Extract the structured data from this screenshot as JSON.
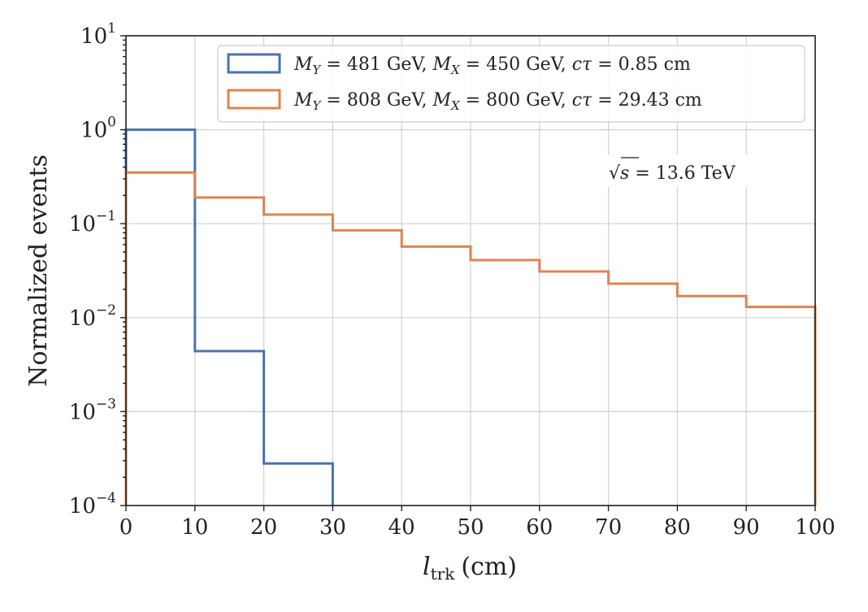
{
  "chart_data": {
    "type": "line",
    "drawstyle": "steps",
    "xlabel": "l_trk (cm)",
    "xlabel_main": "l",
    "xlabel_sub": "trk",
    "xlabel_unit": "(cm)",
    "ylabel": "Normalized events",
    "xlim": [
      0,
      100
    ],
    "ylim": [
      0.0001,
      10
    ],
    "yscale": "log",
    "grid": true,
    "legend_position": "top-right",
    "x_ticks": [
      0,
      10,
      20,
      30,
      40,
      50,
      60,
      70,
      80,
      90,
      100
    ],
    "x_tick_labels": [
      "0",
      "10",
      "20",
      "30",
      "40",
      "50",
      "60",
      "70",
      "80",
      "90",
      "100"
    ],
    "y_ticks": [
      {
        "value": 10,
        "base": "10",
        "exp": "1"
      },
      {
        "value": 1,
        "base": "10",
        "exp": "0"
      },
      {
        "value": 0.1,
        "base": "10",
        "exp": "−1"
      },
      {
        "value": 0.01,
        "base": "10",
        "exp": "−2"
      },
      {
        "value": 0.001,
        "base": "10",
        "exp": "−3"
      },
      {
        "value": 0.0001,
        "base": "10",
        "exp": "−4"
      }
    ],
    "bin_edges": [
      0,
      10,
      20,
      30,
      40,
      50,
      60,
      70,
      80,
      90,
      100
    ],
    "series": [
      {
        "name": "M_Y = 481 GeV, M_X = 450 GeV, cτ = 0.85 cm",
        "label_parts": {
          "m1": "M",
          "s1": "Y",
          "v1": " = 481 GeV, ",
          "m2": "M",
          "s2": "X",
          "v2": " = 450 GeV, ",
          "ct": "cτ",
          "v3": " = 0.85 cm"
        },
        "color": "#4c72b0",
        "values": [
          1.0,
          0.0044,
          0.00028,
          0,
          0,
          0,
          0,
          0,
          0,
          0
        ]
      },
      {
        "name": "M_Y = 808 GeV, M_X = 800 GeV, cτ = 29.43 cm",
        "label_parts": {
          "m1": "M",
          "s1": "Y",
          "v1": " = 808 GeV, ",
          "m2": "M",
          "s2": "X",
          "v2": " = 800 GeV, ",
          "ct": "cτ",
          "v3": " = 29.43 cm"
        },
        "color": "#dd8452",
        "values": [
          0.35,
          0.19,
          0.125,
          0.085,
          0.057,
          0.041,
          0.031,
          0.023,
          0.017,
          0.013
        ]
      }
    ],
    "annotation": {
      "sqrt": "√",
      "s": "s",
      "rest": " = 13.6 TeV"
    }
  }
}
